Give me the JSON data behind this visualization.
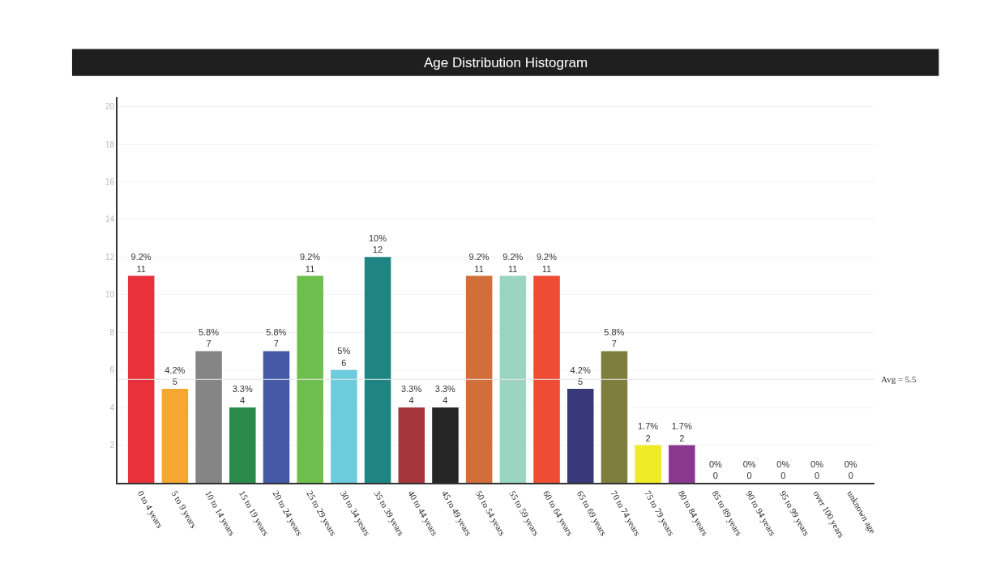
{
  "chart_data": {
    "type": "bar",
    "title": "Age Distribution Histogram",
    "categories": [
      "0 to 4 years",
      "5 to 9 years",
      "10 to 14 years",
      "15 to 19 years",
      "20 to 24 years",
      "25 to 29 years",
      "30 to 34 years",
      "35 to 39 years",
      "40 to 44 years",
      "45 to 49 years",
      "50 to 54 years",
      "55 to 59 years",
      "60 to 64 years",
      "65 to 69 years",
      "70 to 74 years",
      "75 to 79 years",
      "80 to 84 years",
      "85 to 89 years",
      "90 to 94 years",
      "95 to 99 years",
      "over 100 years",
      "unknown age"
    ],
    "values": [
      11,
      5,
      7,
      4,
      7,
      11,
      6,
      12,
      4,
      4,
      11,
      11,
      11,
      5,
      7,
      2,
      2,
      0,
      0,
      0,
      0,
      0
    ],
    "colors": [
      "#e8313a",
      "#f6a631",
      "#858585",
      "#2a8a4a",
      "#4459a8",
      "#6fbf4e",
      "#6ccbdc",
      "#1e8583",
      "#a5353a",
      "#262626",
      "#d26e3a",
      "#9bd5c1",
      "#ee4c33",
      "#383878",
      "#7f7f3d",
      "#efeb26",
      "#8a3790",
      "#cccccc",
      "#cccccc",
      "#cccccc",
      "#cccccc",
      "#cccccc"
    ],
    "value_labels": [
      "9.2%\n11",
      "4.2%\n5",
      "5.8%\n7",
      "3.3%\n4",
      "5.8%\n7",
      "9.2%\n11",
      "5%\n6",
      "10%\n12",
      "3.3%\n4",
      "3.3%\n4",
      "9.2%\n11",
      "9.2%\n11",
      "9.2%\n11",
      "4.2%\n5",
      "5.8%\n7",
      "1.7%\n2",
      "1.7%\n2",
      "0%\n0",
      "0%\n0",
      "0%\n0",
      "0%\n0",
      "0%\n0"
    ],
    "ylim": [
      0,
      20.5
    ],
    "yticks": [
      2,
      4,
      6,
      8,
      10,
      12,
      14,
      16,
      18,
      20
    ],
    "grid": "y",
    "ref_lines": [
      {
        "axis": "y",
        "value": 5.5,
        "label": "Avg = 5.5",
        "color": "#e6e6e6"
      }
    ]
  }
}
